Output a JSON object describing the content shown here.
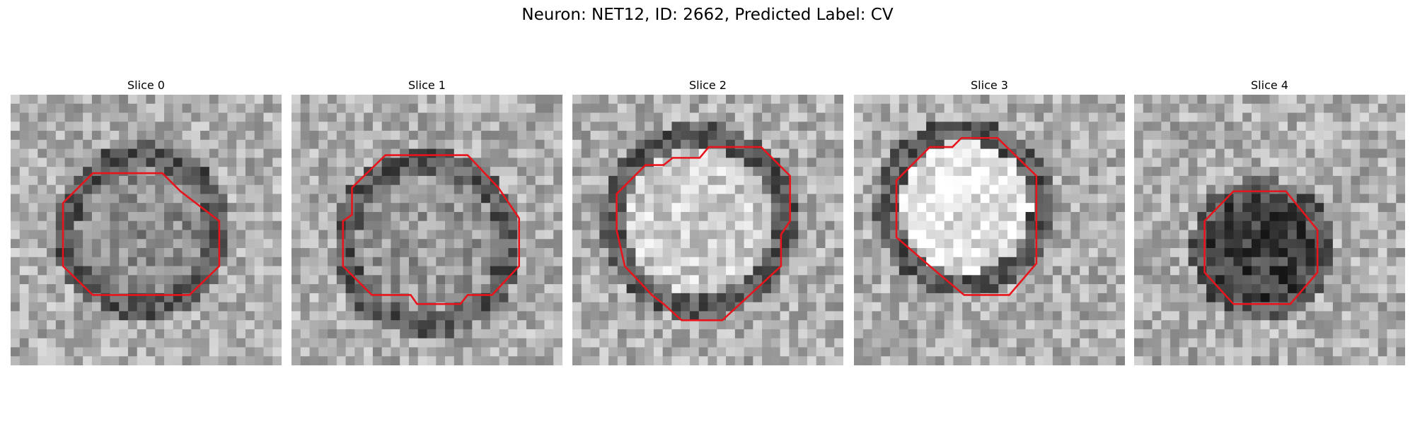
{
  "title": "Neuron: NET12, ID: 2662, Predicted Label: CV",
  "panels": [
    {
      "title": "Slice 0"
    },
    {
      "title": "Slice 1"
    },
    {
      "title": "Slice 2"
    },
    {
      "title": "Slice 3"
    },
    {
      "title": "Slice 4"
    }
  ]
}
